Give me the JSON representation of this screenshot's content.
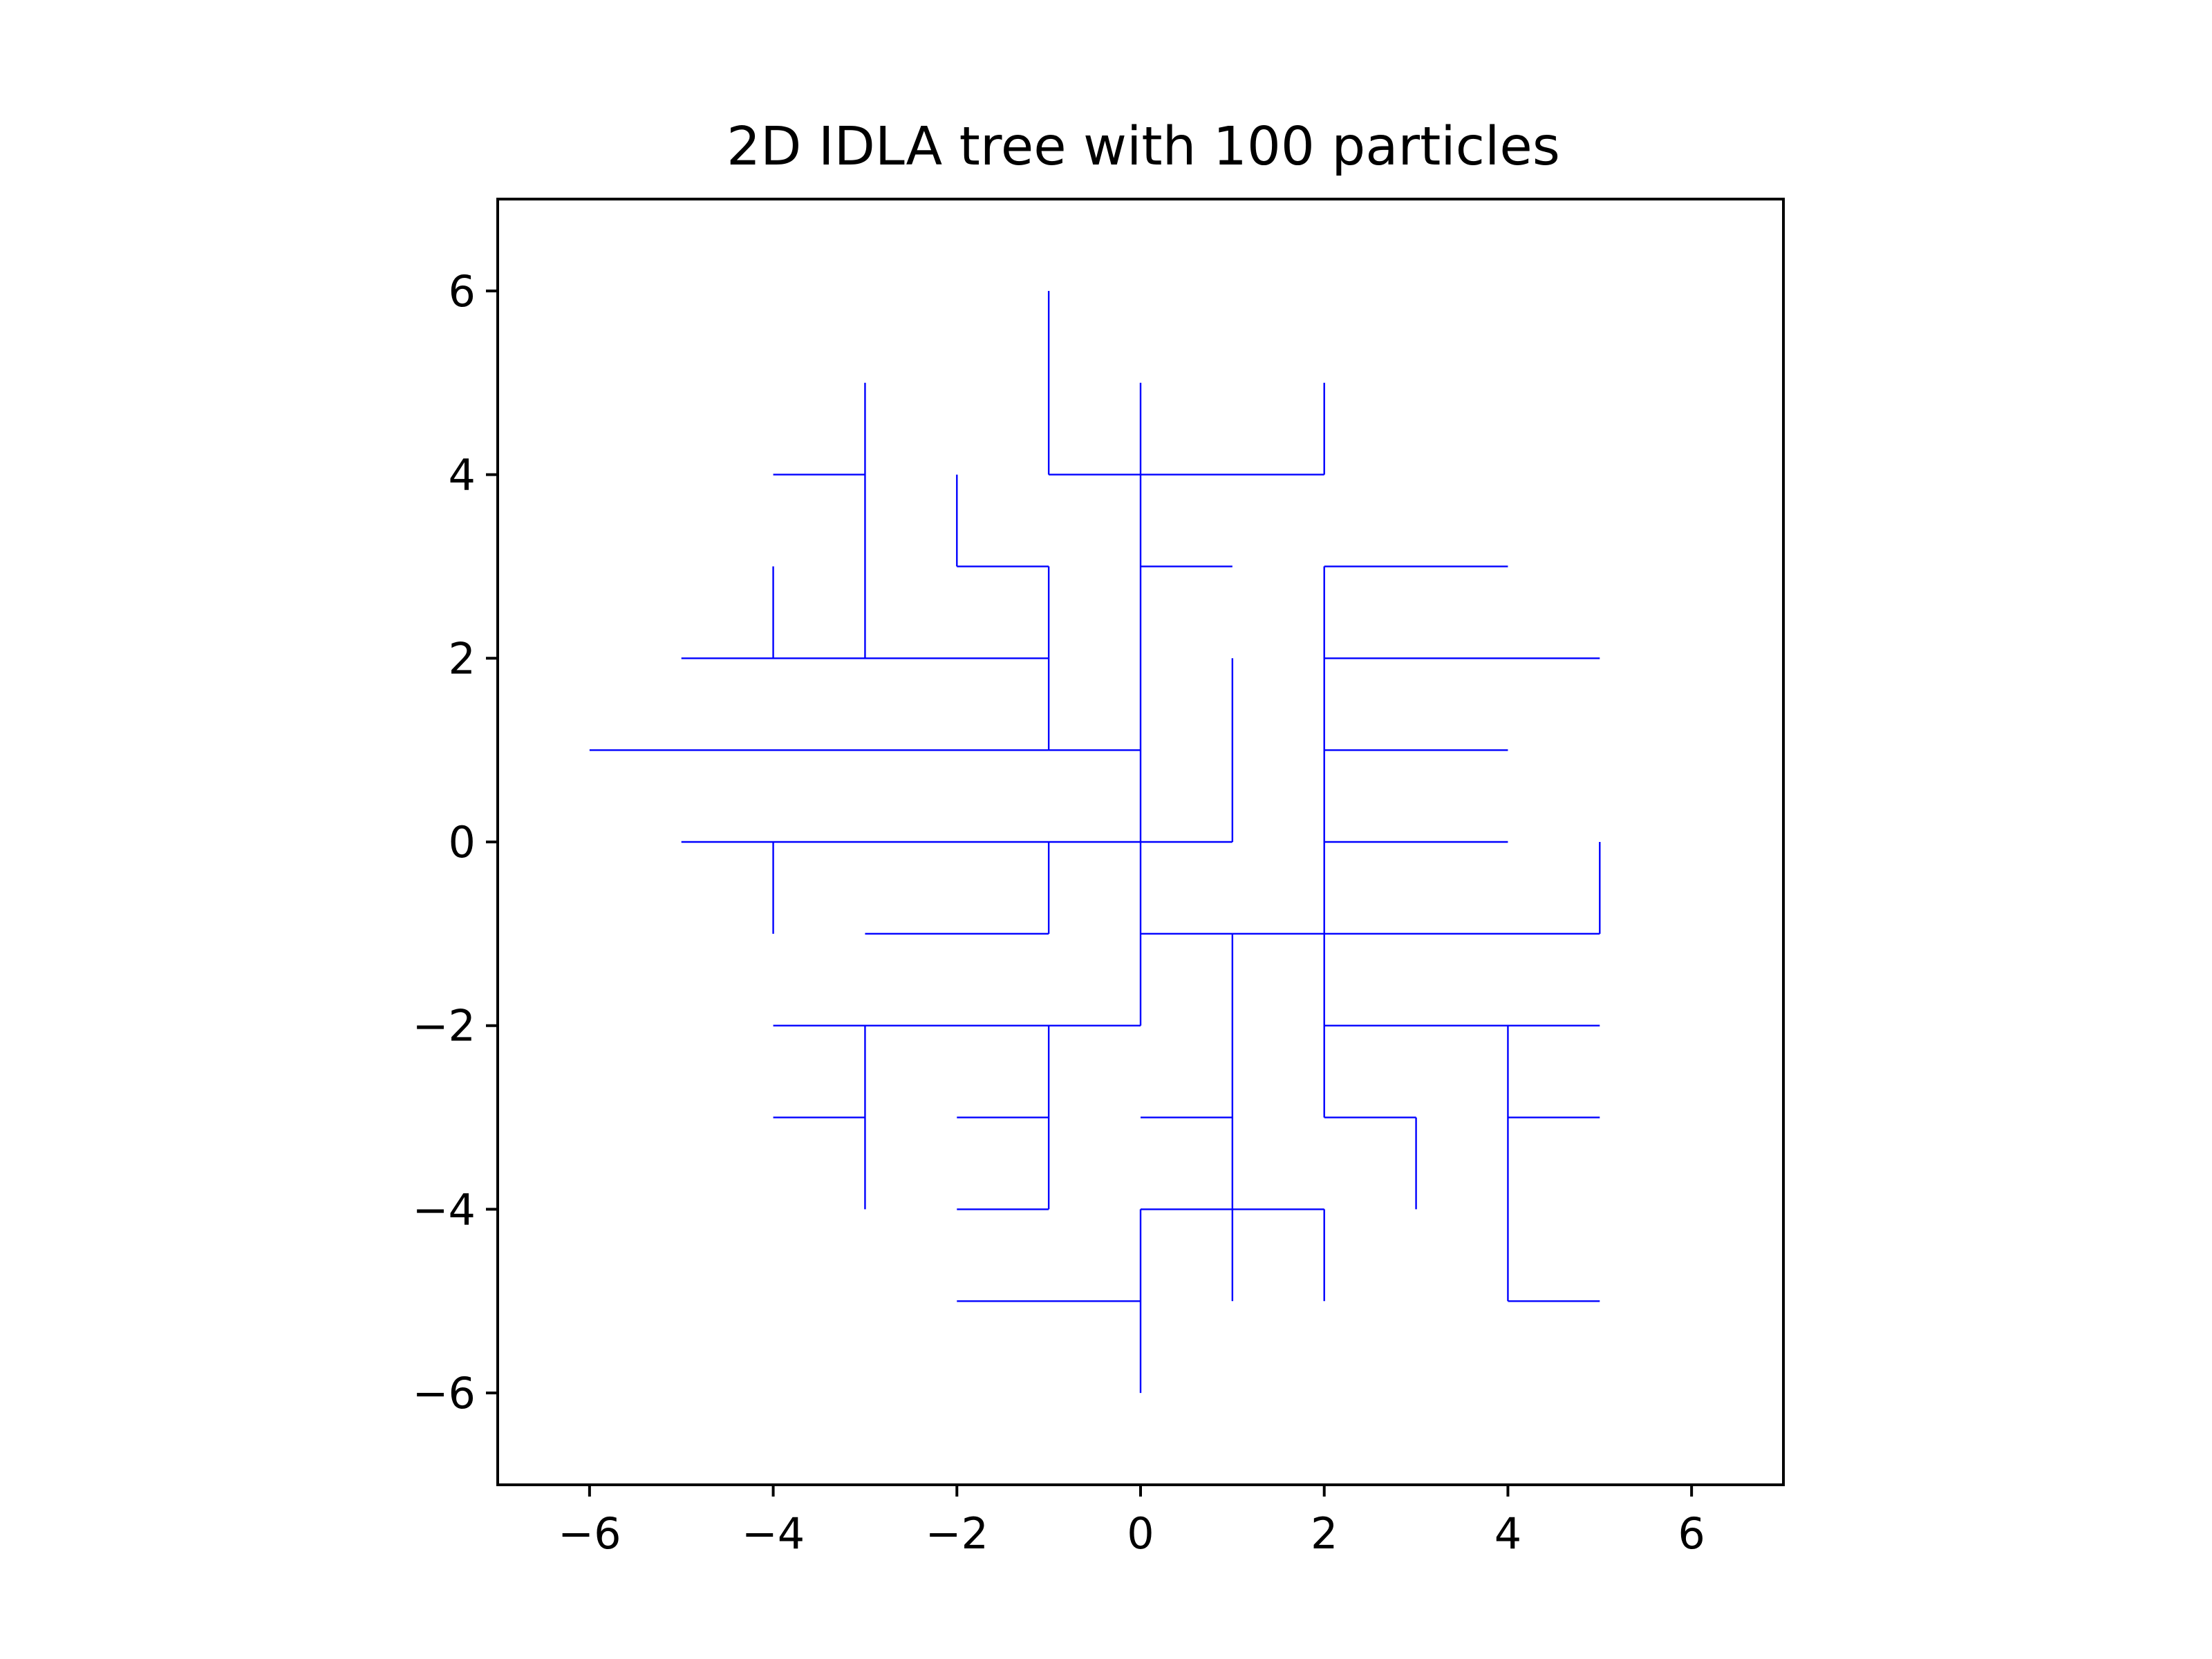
{
  "chart_data": {
    "type": "line",
    "title": "2D IDLA tree with 100 particles",
    "xlabel": "",
    "ylabel": "",
    "xlim": [
      -7,
      7
    ],
    "ylim": [
      -7,
      7
    ],
    "xticks": [
      -6,
      -4,
      -2,
      0,
      2,
      4,
      6
    ],
    "yticks": [
      -6,
      -4,
      -2,
      0,
      2,
      4,
      6
    ],
    "xtick_labels": [
      "−6",
      "−4",
      "−2",
      "0",
      "2",
      "4",
      "6"
    ],
    "ytick_labels": [
      "−6",
      "−4",
      "−2",
      "0",
      "2",
      "4",
      "6"
    ],
    "grid": false,
    "legend": "none",
    "line_color": "#0000ff",
    "segments": [
      [
        [
          -1,
          6
        ],
        [
          -1,
          4
        ]
      ],
      [
        [
          -1,
          4
        ],
        [
          2,
          4
        ]
      ],
      [
        [
          2,
          4
        ],
        [
          2,
          5
        ]
      ],
      [
        [
          0,
          5
        ],
        [
          0,
          -2
        ]
      ],
      [
        [
          -3,
          5
        ],
        [
          -3,
          2
        ]
      ],
      [
        [
          -4,
          4
        ],
        [
          -3,
          4
        ]
      ],
      [
        [
          -2,
          4
        ],
        [
          -2,
          3
        ]
      ],
      [
        [
          -2,
          3
        ],
        [
          -1,
          3
        ]
      ],
      [
        [
          -1,
          3
        ],
        [
          -1,
          1
        ]
      ],
      [
        [
          0,
          3
        ],
        [
          1,
          3
        ]
      ],
      [
        [
          -4,
          3
        ],
        [
          -4,
          2
        ]
      ],
      [
        [
          -5,
          2
        ],
        [
          -1,
          2
        ]
      ],
      [
        [
          -6,
          1
        ],
        [
          0,
          1
        ]
      ],
      [
        [
          -5,
          0
        ],
        [
          1,
          0
        ]
      ],
      [
        [
          1,
          0
        ],
        [
          1,
          2
        ]
      ],
      [
        [
          -4,
          0
        ],
        [
          -4,
          -1
        ]
      ],
      [
        [
          -1,
          0
        ],
        [
          -1,
          -1
        ]
      ],
      [
        [
          -3,
          -1
        ],
        [
          -1,
          -1
        ]
      ],
      [
        [
          0,
          -1
        ],
        [
          5,
          -1
        ]
      ],
      [
        [
          5,
          -1
        ],
        [
          5,
          0
        ]
      ],
      [
        [
          2,
          3
        ],
        [
          2,
          -3
        ]
      ],
      [
        [
          2,
          3
        ],
        [
          4,
          3
        ]
      ],
      [
        [
          2,
          2
        ],
        [
          5,
          2
        ]
      ],
      [
        [
          2,
          1
        ],
        [
          4,
          1
        ]
      ],
      [
        [
          2,
          0
        ],
        [
          4,
          0
        ]
      ],
      [
        [
          -4,
          -2
        ],
        [
          0,
          -2
        ]
      ],
      [
        [
          2,
          -2
        ],
        [
          5,
          -2
        ]
      ],
      [
        [
          4,
          -2
        ],
        [
          4,
          -5
        ]
      ],
      [
        [
          4,
          -5
        ],
        [
          5,
          -5
        ]
      ],
      [
        [
          4,
          -3
        ],
        [
          5,
          -3
        ]
      ],
      [
        [
          2,
          -3
        ],
        [
          3,
          -3
        ]
      ],
      [
        [
          3,
          -3
        ],
        [
          3,
          -4
        ]
      ],
      [
        [
          -3,
          -2
        ],
        [
          -3,
          -4
        ]
      ],
      [
        [
          -4,
          -3
        ],
        [
          -3,
          -3
        ]
      ],
      [
        [
          -1,
          -2
        ],
        [
          -1,
          -4
        ]
      ],
      [
        [
          -2,
          -3
        ],
        [
          -1,
          -3
        ]
      ],
      [
        [
          -2,
          -4
        ],
        [
          -1,
          -4
        ]
      ],
      [
        [
          1,
          -1
        ],
        [
          1,
          -5
        ]
      ],
      [
        [
          0,
          -3
        ],
        [
          1,
          -3
        ]
      ],
      [
        [
          0,
          -4
        ],
        [
          2,
          -4
        ]
      ],
      [
        [
          2,
          -4
        ],
        [
          2,
          -5
        ]
      ],
      [
        [
          0,
          -4
        ],
        [
          0,
          -6
        ]
      ],
      [
        [
          -2,
          -5
        ],
        [
          0,
          -5
        ]
      ]
    ]
  }
}
